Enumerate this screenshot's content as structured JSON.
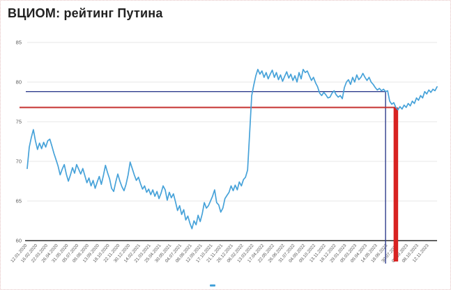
{
  "page": {
    "title": "ВЦИОМ: рейтинг Путина"
  },
  "colors": {
    "background": "#ffffff",
    "title_text": "#212121",
    "line": "#46a2d9",
    "grid": "#e7e7e7",
    "axis_line": "#2b2b2b",
    "tick_text": "#5a5a5a",
    "threshold_blue": "#2f3d8d",
    "threshold_red": "#c5302e",
    "threshold_red_vertical": "#d82322",
    "frame_dotted": "#e3bfbf"
  },
  "chart_data": {
    "type": "line",
    "title": "ВЦИОМ: рейтинг Путина",
    "xlabel": "",
    "ylabel": "",
    "ylim": [
      60,
      85
    ],
    "yticks": [
      60,
      65,
      70,
      75,
      80,
      85
    ],
    "grid": true,
    "legend_position": "bottom-center",
    "points_per_label": 5,
    "x_tick_labels": [
      "12.01.2020",
      "16.02.2020",
      "22.03.2020",
      "26.04.2020",
      "31.05.2020",
      "05.07.2020",
      "09.08.2020",
      "13.09.2020",
      "18.10.2020",
      "22.11.2020",
      "30.12.2020",
      "14.02.2021",
      "21.03.2021",
      "25.04.2021",
      "30.05.2021",
      "04.07.2021",
      "08.08.2021",
      "12.09.2021",
      "17.10.2021",
      "21.11.2021",
      "26.12.2021",
      "06.02.2022",
      "13.03.2022",
      "17.04.2022",
      "22.05.2022",
      "26.06.2022",
      "31.07.2022",
      "04.09.2022",
      "09.10.2022",
      "13.11.2022",
      "18.12.2022",
      "29.01.2023",
      "05.03.2023",
      "09.04.2023",
      "14.05.2023",
      "18.06.2023",
      "30.07.2023",
      "03.09.2023",
      "08.10.2023",
      "12.11.2023"
    ],
    "series": [
      {
        "name": "",
        "color": "#46a2d9",
        "values": [
          69.1,
          71.8,
          73.0,
          74.0,
          72.6,
          71.5,
          72.3,
          71.6,
          72.4,
          71.8,
          72.6,
          72.8,
          71.9,
          71.0,
          70.2,
          69.4,
          68.3,
          69.0,
          69.6,
          68.4,
          67.5,
          68.3,
          69.2,
          68.5,
          69.6,
          69.0,
          68.4,
          69.1,
          68.2,
          67.3,
          67.9,
          66.9,
          67.6,
          66.6,
          67.4,
          68.1,
          67.1,
          68.2,
          69.5,
          68.6,
          67.8,
          66.6,
          66.2,
          67.4,
          68.4,
          67.5,
          66.8,
          66.3,
          67.1,
          68.3,
          69.9,
          69.1,
          68.3,
          67.6,
          68.0,
          67.2,
          66.5,
          66.9,
          66.1,
          66.5,
          65.8,
          66.4,
          65.6,
          66.2,
          65.3,
          66.0,
          66.9,
          66.4,
          65.1,
          66.1,
          65.4,
          65.9,
          64.9,
          63.8,
          64.4,
          63.3,
          63.9,
          62.6,
          63.1,
          62.2,
          61.5,
          62.5,
          62.0,
          63.2,
          62.4,
          63.4,
          64.8,
          64.1,
          64.4,
          65.0,
          65.6,
          66.4,
          64.8,
          64.5,
          63.6,
          64.1,
          65.3,
          65.7,
          66.1,
          66.9,
          66.3,
          67.0,
          66.4,
          67.4,
          66.9,
          67.7,
          68.0,
          68.9,
          73.5,
          78.3,
          79.6,
          80.8,
          81.6,
          81.0,
          81.4,
          80.6,
          81.2,
          80.4,
          81.0,
          81.5,
          80.6,
          81.2,
          80.3,
          80.9,
          80.1,
          80.7,
          81.3,
          80.5,
          81.0,
          80.2,
          80.8,
          80.0,
          81.2,
          80.4,
          81.6,
          81.2,
          81.4,
          80.8,
          80.2,
          80.6,
          79.9,
          79.4,
          78.6,
          78.3,
          78.7,
          78.4,
          78.0,
          78.1,
          78.6,
          78.9,
          78.4,
          78.1,
          78.3,
          77.9,
          79.3,
          80.0,
          80.3,
          79.7,
          80.6,
          80.0,
          80.9,
          80.3,
          80.6,
          81.1,
          80.6,
          80.2,
          80.6,
          80.0,
          79.7,
          79.3,
          79.0,
          79.2,
          78.9,
          79.1,
          78.8,
          78.9,
          77.6,
          77.2,
          77.4,
          76.8,
          76.5,
          76.9,
          76.6,
          77.1,
          76.8,
          77.3,
          77.0,
          77.6,
          77.3,
          78.0,
          77.7,
          78.3,
          78.0,
          78.8,
          78.5,
          79.0,
          78.7,
          79.1,
          78.9,
          79.4
        ]
      }
    ],
    "annotations": [
      {
        "name": "blue-threshold",
        "value": 78.8,
        "point_index": 174,
        "style": "thin",
        "color": "#2f3d8d"
      },
      {
        "name": "red-threshold",
        "value": 76.8,
        "point_index": 179,
        "style": "thick",
        "color": "#c5302e",
        "vertical_color": "#d82322"
      }
    ]
  }
}
